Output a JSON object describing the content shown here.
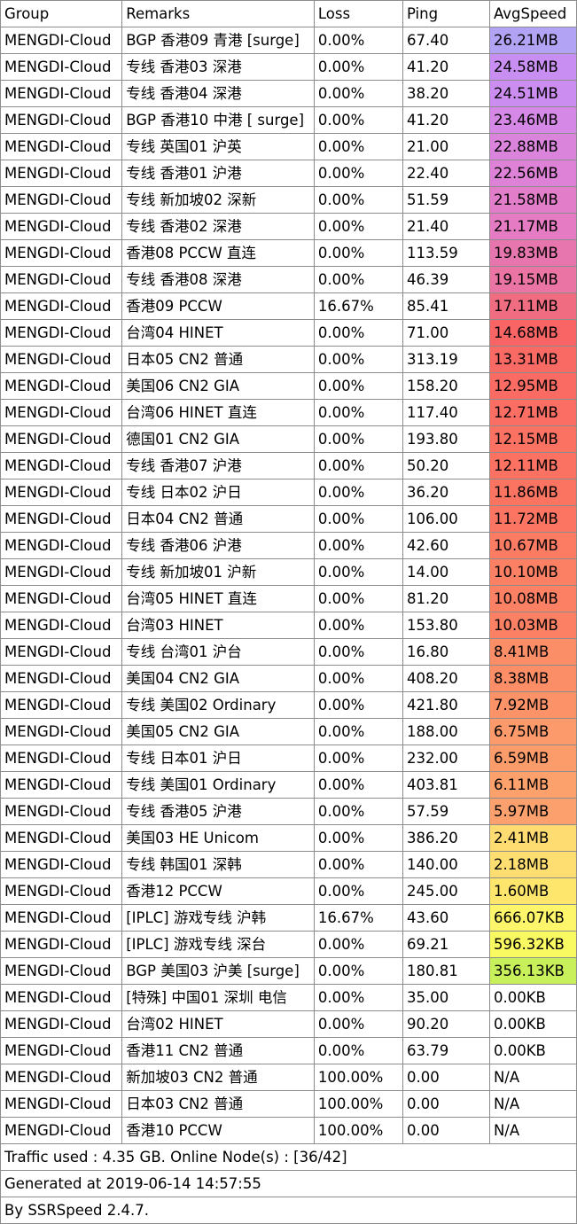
{
  "headers": {
    "group": "Group",
    "remarks": "Remarks",
    "loss": "Loss",
    "ping": "Ping",
    "avg_speed": "AvgSpeed"
  },
  "rows": [
    {
      "group": "MENGDI-Cloud",
      "remarks": "BGP 香港09 青港 [surge]",
      "loss": "0.00%",
      "ping": "67.40",
      "speed": "26.21MB",
      "color": "#b3a3f5"
    },
    {
      "group": "MENGDI-Cloud",
      "remarks": "专线 香港03 深港",
      "loss": "0.00%",
      "ping": "41.20",
      "speed": "24.58MB",
      "color": "#c98ef2"
    },
    {
      "group": "MENGDI-Cloud",
      "remarks": "专线 香港04 深港",
      "loss": "0.00%",
      "ping": "38.20",
      "speed": "24.51MB",
      "color": "#cb8df0"
    },
    {
      "group": "MENGDI-Cloud",
      "remarks": "BGP 香港10 中港 [ surge]",
      "loss": "0.00%",
      "ping": "41.20",
      "speed": "23.46MB",
      "color": "#d588e5"
    },
    {
      "group": "MENGDI-Cloud",
      "remarks": "专线 英国01 沪英",
      "loss": "0.00%",
      "ping": "21.00",
      "speed": "22.88MB",
      "color": "#da84dc"
    },
    {
      "group": "MENGDI-Cloud",
      "remarks": "专线 香港01 沪港",
      "loss": "0.00%",
      "ping": "22.40",
      "speed": "22.56MB",
      "color": "#dd82d7"
    },
    {
      "group": "MENGDI-Cloud",
      "remarks": "专线 新加坡02 深新",
      "loss": "0.00%",
      "ping": "51.59",
      "speed": "21.58MB",
      "color": "#e27dc9"
    },
    {
      "group": "MENGDI-Cloud",
      "remarks": "专线 香港02 深港",
      "loss": "0.00%",
      "ping": "21.40",
      "speed": "21.17MB",
      "color": "#e47bc3"
    },
    {
      "group": "MENGDI-Cloud",
      "remarks": "香港08 PCCW 直连",
      "loss": "0.00%",
      "ping": "113.59",
      "speed": "19.83MB",
      "color": "#e876ae"
    },
    {
      "group": "MENGDI-Cloud",
      "remarks": "专线 香港08 深港",
      "loss": "0.00%",
      "ping": "46.39",
      "speed": "19.15MB",
      "color": "#ea74a3"
    },
    {
      "group": "MENGDI-Cloud",
      "remarks": "香港09 PCCW",
      "loss": "16.67%",
      "ping": "85.41",
      "speed": "17.11MB",
      "color": "#f06c80"
    },
    {
      "group": "MENGDI-Cloud",
      "remarks": "台湾04 HINET",
      "loss": "0.00%",
      "ping": "71.00",
      "speed": "14.68MB",
      "color": "#f96565"
    },
    {
      "group": "MENGDI-Cloud",
      "remarks": "日本05 CN2 普通",
      "loss": "0.00%",
      "ping": "313.19",
      "speed": "13.31MB",
      "color": "#fa6a64"
    },
    {
      "group": "MENGDI-Cloud",
      "remarks": "美国06 CN2 GIA",
      "loss": "0.00%",
      "ping": "158.20",
      "speed": "12.95MB",
      "color": "#fa6c63"
    },
    {
      "group": "MENGDI-Cloud",
      "remarks": "台湾06 HINET 直连",
      "loss": "0.00%",
      "ping": "117.40",
      "speed": "12.71MB",
      "color": "#fb6e63"
    },
    {
      "group": "MENGDI-Cloud",
      "remarks": "德国01 CN2 GIA",
      "loss": "0.00%",
      "ping": "193.80",
      "speed": "12.15MB",
      "color": "#fb7162"
    },
    {
      "group": "MENGDI-Cloud",
      "remarks": "专线 香港07 沪港",
      "loss": "0.00%",
      "ping": "50.20",
      "speed": "12.11MB",
      "color": "#fb7262"
    },
    {
      "group": "MENGDI-Cloud",
      "remarks": "专线 日本02 沪日",
      "loss": "0.00%",
      "ping": "36.20",
      "speed": "11.86MB",
      "color": "#fb7462"
    },
    {
      "group": "MENGDI-Cloud",
      "remarks": "日本04 CN2 普通",
      "loss": "0.00%",
      "ping": "106.00",
      "speed": "11.72MB",
      "color": "#fb7562"
    },
    {
      "group": "MENGDI-Cloud",
      "remarks": "专线 香港06 沪港",
      "loss": "0.00%",
      "ping": "42.60",
      "speed": "10.67MB",
      "color": "#fc7c63"
    },
    {
      "group": "MENGDI-Cloud",
      "remarks": "专线 新加坡01 沪新",
      "loss": "0.00%",
      "ping": "14.00",
      "speed": "10.10MB",
      "color": "#fc8064"
    },
    {
      "group": "MENGDI-Cloud",
      "remarks": "台湾05 HINET 直连",
      "loss": "0.00%",
      "ping": "81.20",
      "speed": "10.08MB",
      "color": "#fc8064"
    },
    {
      "group": "MENGDI-Cloud",
      "remarks": "台湾03 HINET",
      "loss": "0.00%",
      "ping": "153.80",
      "speed": "10.03MB",
      "color": "#fc8164"
    },
    {
      "group": "MENGDI-Cloud",
      "remarks": "专线 台湾01 沪台",
      "loss": "0.00%",
      "ping": "16.80",
      "speed": "8.41MB",
      "color": "#fc8e67"
    },
    {
      "group": "MENGDI-Cloud",
      "remarks": "美国04 CN2 GIA",
      "loss": "0.00%",
      "ping": "408.20",
      "speed": "8.38MB",
      "color": "#fc8e67"
    },
    {
      "group": "MENGDI-Cloud",
      "remarks": "专线 美国02 Ordinary",
      "loss": "0.00%",
      "ping": "421.80",
      "speed": "7.92MB",
      "color": "#fc9268"
    },
    {
      "group": "MENGDI-Cloud",
      "remarks": "美国05 CN2 GIA",
      "loss": "0.00%",
      "ping": "188.00",
      "speed": "6.75MB",
      "color": "#fc9a6b"
    },
    {
      "group": "MENGDI-Cloud",
      "remarks": "专线 日本01 沪日",
      "loss": "0.00%",
      "ping": "232.00",
      "speed": "6.59MB",
      "color": "#fc9c6b"
    },
    {
      "group": "MENGDI-Cloud",
      "remarks": "专线 美国01 Ordinary",
      "loss": "0.00%",
      "ping": "403.81",
      "speed": "6.11MB",
      "color": "#fca06c"
    },
    {
      "group": "MENGDI-Cloud",
      "remarks": "专线 香港05 沪港",
      "loss": "0.00%",
      "ping": "57.59",
      "speed": "5.97MB",
      "color": "#fca16d"
    },
    {
      "group": "MENGDI-Cloud",
      "remarks": "美国03 HE Unicom",
      "loss": "0.00%",
      "ping": "386.20",
      "speed": "2.41MB",
      "color": "#fedc72"
    },
    {
      "group": "MENGDI-Cloud",
      "remarks": "专线 韩国01 深韩",
      "loss": "0.00%",
      "ping": "140.00",
      "speed": "2.18MB",
      "color": "#fede71"
    },
    {
      "group": "MENGDI-Cloud",
      "remarks": "香港12 PCCW",
      "loss": "0.00%",
      "ping": "245.00",
      "speed": "1.60MB",
      "color": "#fee66d"
    },
    {
      "group": "MENGDI-Cloud",
      "remarks": "[IPLC] 游戏专线 沪韩",
      "loss": "16.67%",
      "ping": "43.60",
      "speed": "666.07KB",
      "color": "#fdf56a"
    },
    {
      "group": "MENGDI-Cloud",
      "remarks": "[IPLC] 游戏专线 深台",
      "loss": "0.00%",
      "ping": "69.21",
      "speed": "596.32KB",
      "color": "#f9f962"
    },
    {
      "group": "MENGDI-Cloud",
      "remarks": "BGP 美国03 沪美 [surge]",
      "loss": "0.00%",
      "ping": "180.81",
      "speed": "356.13KB",
      "color": "#c8f05a"
    },
    {
      "group": "MENGDI-Cloud",
      "remarks": "[特殊] 中国01 深圳 电信",
      "loss": "0.00%",
      "ping": "35.00",
      "speed": "0.00KB",
      "color": "#ffffff"
    },
    {
      "group": "MENGDI-Cloud",
      "remarks": "台湾02 HINET",
      "loss": "0.00%",
      "ping": "90.20",
      "speed": "0.00KB",
      "color": "#ffffff"
    },
    {
      "group": "MENGDI-Cloud",
      "remarks": "香港11 CN2 普通",
      "loss": "0.00%",
      "ping": "63.79",
      "speed": "0.00KB",
      "color": "#ffffff"
    },
    {
      "group": "MENGDI-Cloud",
      "remarks": "新加坡03 CN2 普通",
      "loss": "100.00%",
      "ping": "0.00",
      "speed": "N/A",
      "color": "#ffffff"
    },
    {
      "group": "MENGDI-Cloud",
      "remarks": "日本03 CN2 普通",
      "loss": "100.00%",
      "ping": "0.00",
      "speed": "N/A",
      "color": "#ffffff"
    },
    {
      "group": "MENGDI-Cloud",
      "remarks": "香港10 PCCW",
      "loss": "100.00%",
      "ping": "0.00",
      "speed": "N/A",
      "color": "#ffffff"
    }
  ],
  "footer": {
    "traffic": "Traffic used : 4.35 GB. Online Node(s) : [36/42]",
    "generated": "Generated at 2019-06-14 14:57:55",
    "by": "By SSRSpeed 2.4.7."
  }
}
